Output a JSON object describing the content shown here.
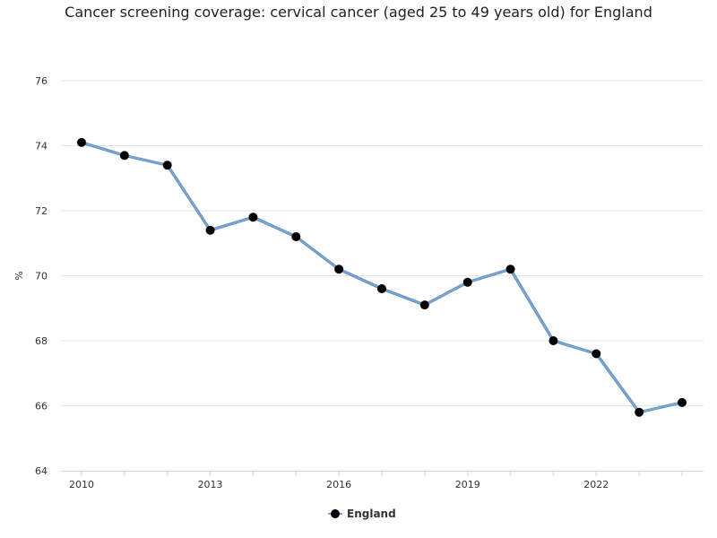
{
  "chart_data": {
    "type": "line",
    "title": "Cancer screening coverage: cervical cancer (aged 25 to 49 years old) for England",
    "xlabel": "",
    "ylabel": "%",
    "x": [
      2010,
      2011,
      2012,
      2013,
      2014,
      2015,
      2016,
      2017,
      2018,
      2019,
      2020,
      2021,
      2022,
      2023,
      2024
    ],
    "x_ticks": [
      "2010",
      "2013",
      "2016",
      "2019",
      "2022"
    ],
    "y_ticks": [
      "64",
      "66",
      "68",
      "70",
      "72",
      "74",
      "76"
    ],
    "ylim": [
      64,
      76
    ],
    "xlim": [
      2010,
      2024
    ],
    "grid": "horizontal",
    "legend": "bottom-center",
    "series": [
      {
        "name": "England",
        "values": [
          74.1,
          73.7,
          73.4,
          71.4,
          71.8,
          71.2,
          70.2,
          69.6,
          69.1,
          69.8,
          70.2,
          68.0,
          67.6,
          65.8,
          66.1
        ],
        "line_color": "#7ba7d0",
        "marker_color": "#000000"
      }
    ]
  }
}
